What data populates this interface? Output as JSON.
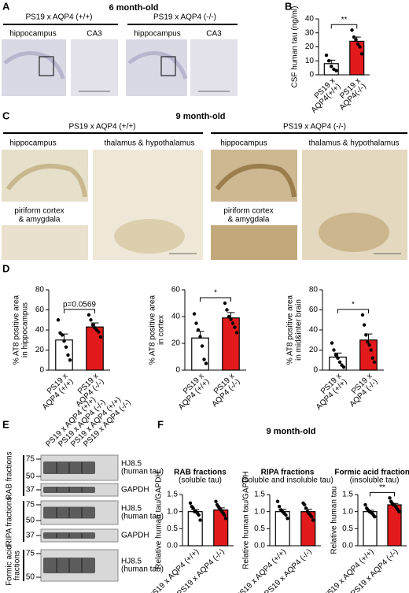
{
  "panel_labels": [
    "A",
    "B",
    "C",
    "D",
    "E",
    "F"
  ],
  "panel_a": {
    "title": "6 month-old",
    "groups": [
      {
        "name": "PS19 x  AQP4 (+/+)",
        "images": [
          "hippocampus",
          "CA3"
        ]
      },
      {
        "name": "PS19 x  AQP4 (-/-)",
        "images": [
          "hippocampus",
          "CA3"
        ]
      }
    ]
  },
  "panel_c": {
    "title": "9 month-old",
    "groups": [
      {
        "name": "PS19 x AQP4 (+/+)",
        "images": [
          "hippocampus",
          "thalamus & hypothalamus"
        ],
        "inset": [
          "piriform cortex",
          "& amygdala"
        ]
      },
      {
        "name": "PS19 x AQP4 (-/-)",
        "images": [
          "hippocampus",
          "thalamus & hypothalamus"
        ],
        "inset": [
          "piriform cortex",
          "& amygdala"
        ]
      }
    ]
  },
  "panel_e": {
    "lanes": [
      "PS19 x AQP4 (+/+)",
      "PS19 x AQP4 (-/-)",
      "PS19 x AQP4 (+/+)",
      "PS19 x AQP4 (-/-)"
    ],
    "lane_colors": [
      "#000000",
      "#e31a1c",
      "#000000",
      "#e31a1c"
    ],
    "fractions": [
      {
        "name": [
          "RAB fractions"
        ],
        "blots": [
          {
            "label": [
              "HJ8.5",
              "(human tau)"
            ],
            "markers": [
              75,
              50
            ]
          },
          {
            "label": [
              "GAPDH"
            ],
            "markers": [
              37
            ]
          }
        ]
      },
      {
        "name": [
          "RIPA fractions"
        ],
        "blots": [
          {
            "label": [
              "HJ8.5",
              "(human tau)"
            ],
            "markers": [
              75,
              50
            ]
          },
          {
            "label": [
              "GAPDH"
            ],
            "markers": [
              37
            ]
          }
        ]
      },
      {
        "name": [
          "Formic acid",
          "fractions"
        ],
        "blots": [
          {
            "label": [
              "HJ8.5",
              "(human tau)"
            ],
            "markers": [
              75,
              50
            ]
          }
        ]
      }
    ]
  },
  "panel_f": {
    "title": "9 month-old"
  },
  "chart_data": [
    {
      "type": "bar",
      "ylabel": [
        "CSF human tau (ng/ml)"
      ],
      "categories": [
        [
          "PS19 x",
          "AQP4(+/+)"
        ],
        [
          "PS19 x",
          "AQP4(-/-)"
        ]
      ],
      "values": [
        8,
        24
      ],
      "errors": [
        2.5,
        3
      ],
      "points": [
        [
          14,
          10,
          6,
          4,
          3
        ],
        [
          32,
          27,
          25,
          22,
          20,
          15
        ]
      ],
      "colors": [
        "#ffffff",
        "#e31a1c"
      ],
      "annotation": "**",
      "ylim": [
        0,
        40
      ],
      "yticks": [
        0,
        10,
        20,
        30,
        40
      ]
    },
    {
      "type": "bar",
      "ylabel": [
        "% AT8 positive area",
        "in hippocampus"
      ],
      "categories": [
        [
          "PS19 x",
          "AQP4 (+/+)"
        ],
        [
          "PS19 x",
          "AQP4 (-/-)"
        ]
      ],
      "values": [
        30,
        43
      ],
      "errors": [
        6,
        4
      ],
      "points": [
        [
          50,
          37,
          35,
          29,
          23,
          15,
          10
        ],
        [
          55,
          50,
          45,
          42,
          40,
          38,
          33
        ]
      ],
      "colors": [
        "#ffffff",
        "#e31a1c"
      ],
      "annotation": "p=0.0569",
      "ylim": [
        0,
        80
      ],
      "yticks": [
        0,
        20,
        40,
        60,
        80
      ]
    },
    {
      "type": "bar",
      "ylabel": [
        "% AT8 positive area",
        "in cortex"
      ],
      "categories": [
        [
          "PS19 x",
          "AQP4 (+/+)"
        ],
        [
          "PS19 x",
          "AQP4 (-/-)"
        ]
      ],
      "values": [
        24,
        39
      ],
      "errors": [
        5,
        4
      ],
      "points": [
        [
          42,
          35,
          30,
          25,
          18,
          8,
          5
        ],
        [
          50,
          45,
          40,
          38,
          35,
          32,
          28
        ]
      ],
      "colors": [
        "#ffffff",
        "#e31a1c"
      ],
      "annotation": "*",
      "ylim": [
        0,
        60
      ],
      "yticks": [
        0,
        20,
        40,
        60
      ]
    },
    {
      "type": "bar",
      "ylabel": [
        "% AT8 positive area",
        "in mid&inter brain"
      ],
      "categories": [
        [
          "PS19 x",
          "AQP4 (+/+)"
        ],
        [
          "PS19 x",
          "AQP4 (-/-)"
        ]
      ],
      "values": [
        13,
        30
      ],
      "errors": [
        4,
        6
      ],
      "points": [
        [
          27,
          20,
          15,
          12,
          8,
          5,
          3
        ],
        [
          55,
          45,
          35,
          28,
          25,
          20,
          12,
          8
        ]
      ],
      "colors": [
        "#ffffff",
        "#e31a1c"
      ],
      "annotation": "*",
      "ylim": [
        0,
        80
      ],
      "yticks": [
        0,
        20,
        40,
        60,
        80
      ]
    },
    {
      "type": "bar",
      "title": "RAB fractions",
      "subtitle": "(soluble tau)",
      "ylabel": [
        "Relative human tau/GAPDH"
      ],
      "categories": [
        [
          "PS19 x AQP4 (+/+)"
        ],
        [
          "PS19 x AQP4 (-/-)"
        ]
      ],
      "values": [
        1.0,
        1.05
      ],
      "errors": [
        0.06,
        0.06
      ],
      "points": [
        [
          1.25,
          1.15,
          1.1,
          1.0,
          1.0,
          0.95,
          0.9,
          0.75
        ],
        [
          1.3,
          1.2,
          1.15,
          1.1,
          1.05,
          1.0,
          0.95,
          0.9,
          0.8
        ]
      ],
      "colors": [
        "#ffffff",
        "#e31a1c"
      ],
      "ylim": [
        0,
        1.5
      ],
      "yticks": [
        {
          "value": 0,
          "label": "0.0"
        },
        {
          "value": 0.5,
          "label": "0.5"
        },
        {
          "value": 1,
          "label": "1.0"
        },
        {
          "value": 1.5,
          "label": "1.5"
        }
      ]
    },
    {
      "type": "bar",
      "title": "RIPA fractions",
      "subtitle": "(soluble and insoluble tau)",
      "ylabel": [
        "Relative human tau/GAPDH"
      ],
      "categories": [
        [
          "PS19 x AQP4 (+/+)"
        ],
        [
          "PS19 x AQP4 (-/-)"
        ]
      ],
      "values": [
        1.0,
        1.0
      ],
      "errors": [
        0.07,
        0.07
      ],
      "points": [
        [
          1.3,
          1.15,
          1.05,
          1.0,
          0.95,
          0.9,
          0.8
        ],
        [
          1.25,
          1.2,
          1.1,
          1.0,
          0.95,
          0.9,
          0.85,
          0.75
        ]
      ],
      "colors": [
        "#ffffff",
        "#e31a1c"
      ],
      "ylim": [
        0,
        1.5
      ],
      "yticks": [
        {
          "value": 0,
          "label": "0.0"
        },
        {
          "value": 0.5,
          "label": "0.5"
        },
        {
          "value": 1,
          "label": "1.0"
        },
        {
          "value": 1.5,
          "label": "1.5"
        }
      ]
    },
    {
      "type": "bar",
      "title": "Formic acid fractions",
      "subtitle": "(insoluble tau)",
      "ylabel": [
        "Relative human tau"
      ],
      "categories": [
        [
          "PS19 x AQP4 (+/+)"
        ],
        [
          "PS19 x AQP4 (-/-)"
        ]
      ],
      "values": [
        1.0,
        1.2
      ],
      "errors": [
        0.04,
        0.04
      ],
      "points": [
        [
          1.2,
          1.1,
          1.05,
          1.0,
          0.98,
          0.95,
          0.9,
          0.85
        ],
        [
          1.4,
          1.3,
          1.25,
          1.2,
          1.2,
          1.15,
          1.1,
          1.05,
          1.0
        ]
      ],
      "colors": [
        "#ffffff",
        "#e31a1c"
      ],
      "annotation": "**",
      "ylim": [
        0,
        1.5
      ],
      "yticks": [
        {
          "value": 0,
          "label": "0.0"
        },
        {
          "value": 0.5,
          "label": "0.5"
        },
        {
          "value": 1,
          "label": "1.0"
        },
        {
          "value": 1.5,
          "label": "1.5"
        }
      ]
    }
  ]
}
